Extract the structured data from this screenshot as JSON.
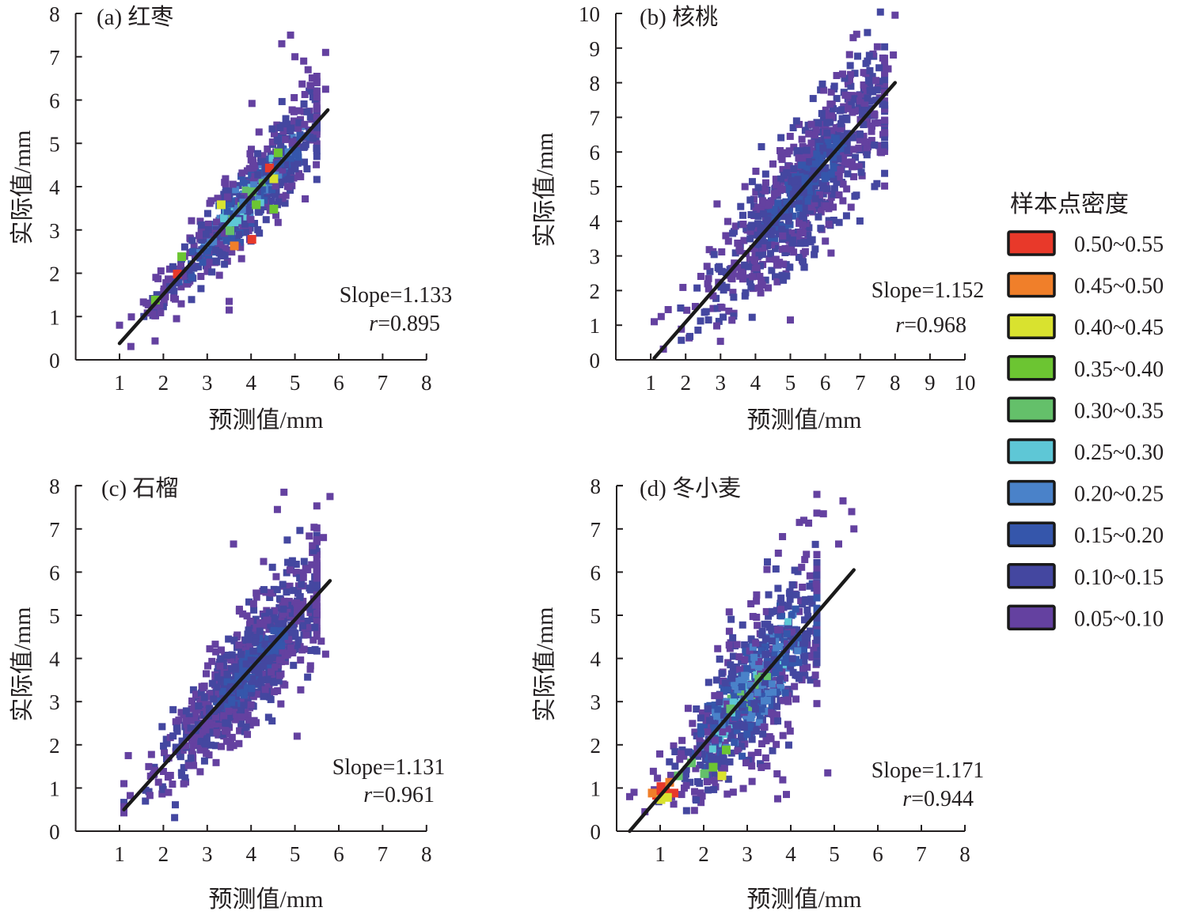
{
  "chart_data": [
    {
      "type": "scatter",
      "panel": "a",
      "title": "(a) 红枣",
      "xlabel": "预测值/mm",
      "ylabel": "实际值/mm",
      "xlim": [
        0,
        8
      ],
      "ylim": [
        0,
        8
      ],
      "xticks": [
        "1",
        "2",
        "3",
        "4",
        "5",
        "6",
        "7",
        "8"
      ],
      "yticks": [
        "0",
        "1",
        "2",
        "3",
        "4",
        "5",
        "6",
        "7",
        "8"
      ],
      "slope_text": "Slope=1.133",
      "r_label": "r",
      "r_text": "=0.895",
      "fit_line": {
        "x": [
          1.0,
          5.75
        ],
        "y": [
          0.38,
          5.77
        ]
      },
      "cloud": {
        "x_range": [
          1.0,
          5.8
        ],
        "center_slope": 1.133,
        "spread": 0.55,
        "n": 700,
        "seed": 11,
        "palette": "mixed"
      },
      "outliers": [
        [
          4.9,
          7.5
        ],
        [
          4.7,
          7.3
        ],
        [
          5.7,
          7.1
        ],
        [
          5.0,
          7.0
        ],
        [
          5.2,
          6.9
        ],
        [
          5.3,
          6.7
        ],
        [
          5.7,
          6.25
        ],
        [
          5.5,
          6.2
        ],
        [
          3.5,
          1.15
        ],
        [
          3.5,
          1.35
        ],
        [
          1.0,
          0.8
        ],
        [
          2.3,
          0.95
        ]
      ],
      "hot_spots": [
        [
          2.3,
          2.0,
          "0.50~0.55"
        ],
        [
          4.0,
          2.8,
          "0.50~0.55"
        ],
        [
          4.4,
          4.45,
          "0.50~0.55"
        ],
        [
          3.3,
          3.6,
          "0.40~0.45"
        ],
        [
          3.6,
          2.65,
          "0.45~0.50"
        ],
        [
          4.5,
          4.2,
          "0.40~0.45"
        ],
        [
          4.6,
          4.8,
          "0.35~0.40"
        ],
        [
          4.1,
          3.6,
          "0.35~0.40"
        ],
        [
          2.4,
          2.4,
          "0.35~0.40"
        ],
        [
          1.8,
          1.4,
          "0.35~0.40"
        ],
        [
          4.5,
          3.5,
          "0.35~0.40"
        ],
        [
          4.0,
          3.9,
          "0.30~0.35"
        ],
        [
          3.5,
          3.0,
          "0.30~0.35"
        ]
      ]
    },
    {
      "type": "scatter",
      "panel": "b",
      "title": "(b) 核桃",
      "xlabel": "预测值/mm",
      "ylabel": "实际值/mm",
      "xlim": [
        0,
        10
      ],
      "ylim": [
        0,
        10
      ],
      "xticks": [
        "1",
        "2",
        "3",
        "4",
        "5",
        "6",
        "7",
        "8",
        "9",
        "10"
      ],
      "yticks": [
        "0",
        "1",
        "2",
        "3",
        "4",
        "5",
        "6",
        "7",
        "8",
        "9",
        "10"
      ],
      "slope_text": "Slope=1.152",
      "r_label": "r",
      "r_text": "=0.968",
      "fit_line": {
        "x": [
          1.1,
          8.0
        ],
        "y": [
          0.05,
          8.0
        ]
      },
      "cloud": {
        "x_range": [
          1.1,
          8.0
        ],
        "center_slope": 1.152,
        "spread": 1.1,
        "n": 900,
        "seed": 23,
        "palette": "cool"
      },
      "outliers": [
        [
          8.0,
          9.95
        ],
        [
          6.9,
          9.4
        ],
        [
          6.8,
          9.3
        ],
        [
          7.95,
          8.8
        ],
        [
          7.8,
          8.4
        ],
        [
          1.1,
          1.1
        ],
        [
          1.3,
          1.25
        ],
        [
          1.5,
          1.45
        ],
        [
          5.0,
          1.15
        ],
        [
          2.9,
          4.5
        ],
        [
          3.7,
          5.0
        ],
        [
          7.4,
          7.1
        ]
      ],
      "hot_spots": []
    },
    {
      "type": "scatter",
      "panel": "c",
      "title": "(c) 石榴",
      "xlabel": "预测值/mm",
      "ylabel": "实际值/mm",
      "xlim": [
        0,
        8
      ],
      "ylim": [
        0,
        8
      ],
      "xticks": [
        "1",
        "2",
        "3",
        "4",
        "5",
        "6",
        "7",
        "8"
      ],
      "yticks": [
        "0",
        "1",
        "2",
        "3",
        "4",
        "5",
        "6",
        "7",
        "8"
      ],
      "slope_text": "Slope=1.131",
      "r_label": "r",
      "r_text": "=0.961",
      "fit_line": {
        "x": [
          1.1,
          5.8
        ],
        "y": [
          0.5,
          5.8
        ]
      },
      "cloud": {
        "x_range": [
          1.1,
          5.8
        ],
        "center_slope": 1.131,
        "spread": 0.75,
        "n": 950,
        "seed": 37,
        "palette": "cool"
      },
      "outliers": [
        [
          4.75,
          7.85
        ],
        [
          5.8,
          7.75
        ],
        [
          4.6,
          7.45
        ],
        [
          5.65,
          6.8
        ],
        [
          3.6,
          6.65
        ],
        [
          5.6,
          4.4
        ],
        [
          5.7,
          4.1
        ],
        [
          5.35,
          3.75
        ],
        [
          1.1,
          1.1
        ],
        [
          1.2,
          1.75
        ],
        [
          5.05,
          2.2
        ]
      ],
      "hot_spots": []
    },
    {
      "type": "scatter",
      "panel": "d",
      "title": "(d) 冬小麦",
      "xlabel": "预测值/mm",
      "ylabel": "实际值/mm",
      "xlim": [
        0,
        8
      ],
      "ylim": [
        0,
        8
      ],
      "xticks": [
        "1",
        "2",
        "3",
        "4",
        "5",
        "6",
        "7",
        "8"
      ],
      "yticks": [
        "0",
        "1",
        "2",
        "3",
        "4",
        "5",
        "6",
        "7",
        "8"
      ],
      "slope_text": "Slope=1.171",
      "r_label": "r",
      "r_text": "=0.944",
      "fit_line": {
        "x": [
          0.3,
          5.45
        ],
        "y": [
          0.0,
          6.05
        ]
      },
      "cloud": {
        "x_range": [
          0.3,
          4.9
        ],
        "center_slope": 1.171,
        "spread": 1.0,
        "n": 800,
        "seed": 53,
        "palette": "mixed"
      },
      "outliers": [
        [
          4.6,
          7.8
        ],
        [
          5.2,
          7.65
        ],
        [
          5.4,
          7.4
        ],
        [
          4.75,
          7.35
        ],
        [
          5.45,
          7.0
        ],
        [
          5.1,
          6.65
        ],
        [
          4.3,
          7.2
        ],
        [
          4.2,
          7.15
        ],
        [
          0.3,
          0.8
        ],
        [
          0.4,
          0.9
        ],
        [
          0.65,
          0.45
        ],
        [
          4.85,
          1.35
        ],
        [
          3.9,
          0.85
        ],
        [
          3.7,
          0.75
        ]
      ],
      "hot_spots": [
        [
          1.0,
          1.05,
          "0.50~0.55"
        ],
        [
          0.9,
          0.85,
          "0.50~0.55"
        ],
        [
          1.1,
          0.95,
          "0.50~0.55"
        ],
        [
          0.8,
          0.9,
          "0.45~0.50"
        ],
        [
          1.0,
          0.75,
          "0.40~0.45"
        ],
        [
          1.2,
          1.15,
          "0.45~0.50"
        ],
        [
          1.3,
          0.9,
          "0.50~0.55"
        ],
        [
          1.15,
          0.8,
          "0.40~0.45"
        ],
        [
          2.5,
          1.9,
          "0.35~0.40"
        ],
        [
          2.2,
          1.5,
          "0.35~0.40"
        ],
        [
          1.7,
          1.6,
          "0.30~0.35"
        ],
        [
          2.4,
          1.3,
          "0.40~0.45"
        ],
        [
          2.6,
          2.85,
          "0.30~0.35"
        ],
        [
          1.4,
          1.3,
          "0.30~0.35"
        ],
        [
          2.0,
          1.35,
          "0.30~0.35"
        ]
      ]
    }
  ],
  "legend": {
    "title": "样本点密度",
    "items": [
      {
        "label": "0.50~0.55",
        "color": "#e8392a"
      },
      {
        "label": "0.45~0.50",
        "color": "#f07f2a"
      },
      {
        "label": "0.40~0.45",
        "color": "#d9e22f"
      },
      {
        "label": "0.35~0.40",
        "color": "#6cc532"
      },
      {
        "label": "0.30~0.35",
        "color": "#64c06a"
      },
      {
        "label": "0.25~0.30",
        "color": "#5ec7d6"
      },
      {
        "label": "0.20~0.25",
        "color": "#4a82c9"
      },
      {
        "label": "0.15~0.20",
        "color": "#3556ab"
      },
      {
        "label": "0.10~0.15",
        "color": "#4447a0"
      },
      {
        "label": "0.05~0.10",
        "color": "#6441a0"
      }
    ]
  }
}
